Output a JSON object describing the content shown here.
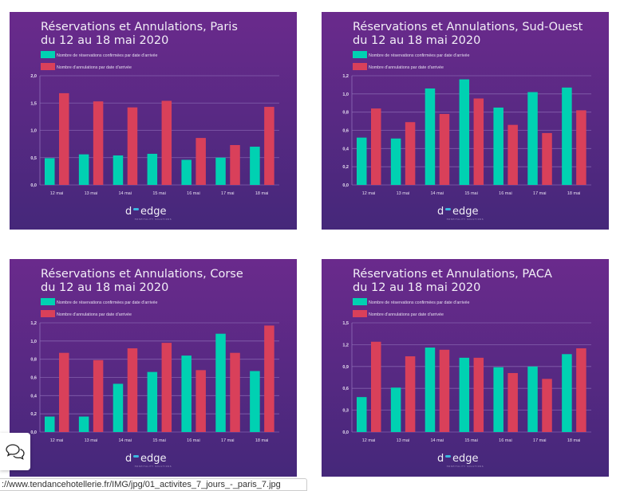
{
  "chart_data": [
    {
      "type": "bar",
      "title": "Réservations et Annulations, Paris",
      "subtitle": "du 12 au 18 mai 2020",
      "categories": [
        "12 mai",
        "13 mai",
        "14 mai",
        "15 mai",
        "16 mai",
        "17 mai",
        "18 mai"
      ],
      "ylim": [
        0,
        2.0
      ],
      "yticks": [
        "0,0",
        "0,5",
        "1,0",
        "1,5",
        "2,0"
      ],
      "ytick_values": [
        0,
        0.5,
        1.0,
        1.5,
        2.0
      ],
      "grid": true,
      "legend": "top-left",
      "series": [
        {
          "name": "Nombre de réservations confirmées par date d'arrivée",
          "color": "#00d1b2",
          "values": [
            0.49,
            0.56,
            0.54,
            0.57,
            0.46,
            0.5,
            0.7
          ]
        },
        {
          "name": "Nombre d'annulations par date d'arrivée",
          "color": "#d9405a",
          "values": [
            1.68,
            1.53,
            1.42,
            1.54,
            0.86,
            0.73,
            1.43
          ]
        }
      ]
    },
    {
      "type": "bar",
      "title": "Réservations et Annulations, Sud-Ouest",
      "subtitle": "du 12 au 18 mai 2020",
      "categories": [
        "12 mai",
        "13 mai",
        "14 mai",
        "15 mai",
        "16 mai",
        "17 mai",
        "18 mai"
      ],
      "ylim": [
        0,
        1.2
      ],
      "yticks": [
        "0,0",
        "0,2",
        "0,4",
        "0,6",
        "0,8",
        "1,0",
        "1,2"
      ],
      "ytick_values": [
        0,
        0.2,
        0.4,
        0.6,
        0.8,
        1.0,
        1.2
      ],
      "grid": true,
      "legend": "top-left",
      "series": [
        {
          "name": "Nombre de réservations confirmées par date d'arrivée",
          "color": "#00d1b2",
          "values": [
            0.52,
            0.51,
            1.06,
            1.16,
            0.85,
            1.02,
            1.07
          ]
        },
        {
          "name": "Nombre d'annulations par date d'arrivée",
          "color": "#d9405a",
          "values": [
            0.84,
            0.69,
            0.78,
            0.95,
            0.66,
            0.57,
            0.82
          ]
        }
      ]
    },
    {
      "type": "bar",
      "title": "Réservations et Annulations, Corse",
      "subtitle": "du 12 au 18 mai 2020",
      "categories": [
        "12 mai",
        "13 mai",
        "14 mai",
        "15 mai",
        "16 mai",
        "17 mai",
        "18 mai"
      ],
      "ylim": [
        0,
        1.2
      ],
      "yticks": [
        "0,0",
        "0,2",
        "0,4",
        "0,6",
        "0,8",
        "1,0",
        "1,2"
      ],
      "ytick_values": [
        0,
        0.2,
        0.4,
        0.6,
        0.8,
        1.0,
        1.2
      ],
      "grid": true,
      "legend": "top-left",
      "series": [
        {
          "name": "Nombre de réservations confirmées par date d'arrivée",
          "color": "#00d1b2",
          "values": [
            0.17,
            0.17,
            0.53,
            0.66,
            0.84,
            1.08,
            0.67
          ]
        },
        {
          "name": "Nombre d'annulations par date d'arrivée",
          "color": "#d9405a",
          "values": [
            0.87,
            0.79,
            0.92,
            0.98,
            0.68,
            0.87,
            1.17
          ]
        }
      ]
    },
    {
      "type": "bar",
      "title": "Réservations et Annulations, PACA",
      "subtitle": "du 12 au 18 mai 2020",
      "categories": [
        "12 mai",
        "13 mai",
        "14 mai",
        "15 mai",
        "16 mai",
        "17 mai",
        "18 mai"
      ],
      "ylim": [
        0,
        1.5
      ],
      "yticks": [
        "0,0",
        "0,3",
        "0,6",
        "0,9",
        "1,2",
        "1,5"
      ],
      "ytick_values": [
        0,
        0.3,
        0.6,
        0.9,
        1.2,
        1.5
      ],
      "grid": true,
      "legend": "top-left",
      "series": [
        {
          "name": "Nombre de réservations confirmées par date d'arrivée",
          "color": "#00d1b2",
          "values": [
            0.48,
            0.61,
            1.16,
            1.02,
            0.89,
            0.9,
            1.07
          ]
        },
        {
          "name": "Nombre d'annulations par date d'arrivée",
          "color": "#d9405a",
          "values": [
            1.24,
            1.04,
            1.13,
            1.02,
            0.81,
            0.73,
            1.15
          ]
        }
      ]
    }
  ],
  "logo": {
    "text": "d-edge",
    "tagline": "HOSPITALITY SOLUTIONS"
  },
  "chat": {
    "icon": "chat-bubbles-icon"
  },
  "status_bar": {
    "url": "://www.tendancehotellerie.fr/IMG/jpg/01_activites_7_jours_-_paris_7.jpg"
  }
}
